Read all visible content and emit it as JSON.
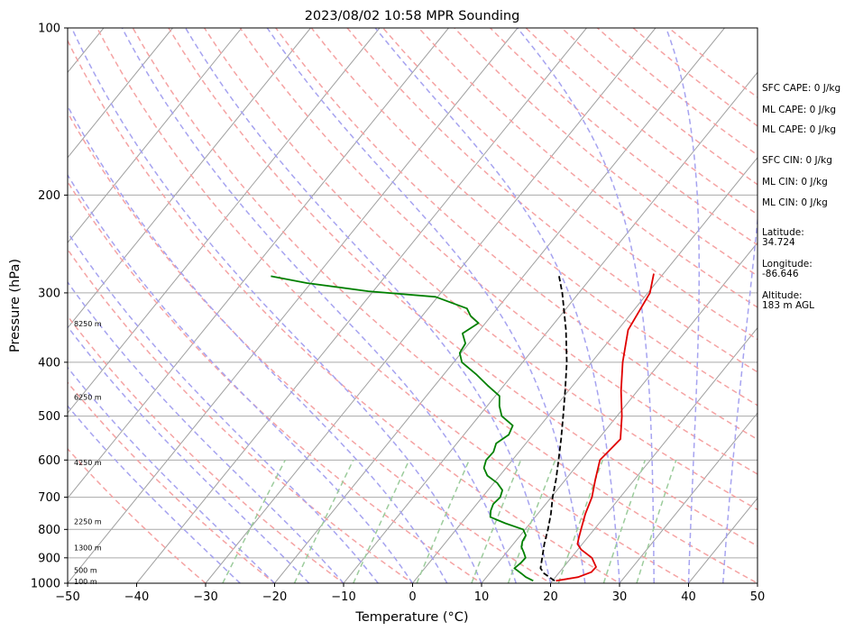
{
  "figure": {
    "title": "2023/08/02 10:58 MPR Sounding",
    "xlabel": "Temperature (°C)",
    "ylabel": "Pressure (hPa)"
  },
  "side_panel": [
    {
      "id": "sfc-cape",
      "text": "SFC CAPE: 0 J/kg"
    },
    {
      "id": "ml-cape-1",
      "text": "ML CAPE: 0 J/kg"
    },
    {
      "id": "ml-cape-2",
      "text": "ML CAPE: 0 J/kg"
    },
    {
      "id": "sfc-cin",
      "text": "SFC CIN: 0 J/kg"
    },
    {
      "id": "ml-cin-1",
      "text": "ML CIN: 0 J/kg"
    },
    {
      "id": "ml-cin-2",
      "text": "ML CIN: 0 J/kg"
    },
    {
      "id": "latitude-label",
      "text": "Latitude:"
    },
    {
      "id": "latitude-value",
      "text": "34.724"
    },
    {
      "id": "longitude-label",
      "text": "Longitude:"
    },
    {
      "id": "longitude-value",
      "text": "-86.646"
    },
    {
      "id": "altitude-label",
      "text": "Altitude:"
    },
    {
      "id": "altitude-value",
      "text": "183 m AGL"
    }
  ],
  "chart_data": {
    "type": "line",
    "title": "2023/08/02 10:58 MPR Sounding",
    "xlabel": "Temperature (°C)",
    "ylabel": "Pressure (hPa)",
    "xlim": [
      -50,
      50
    ],
    "ylim": [
      1000,
      100
    ],
    "y_scale": "log",
    "x_ticks": [
      -50,
      -40,
      -30,
      -20,
      -10,
      0,
      10,
      20,
      30,
      40,
      50
    ],
    "y_ticks": [
      1000,
      900,
      800,
      700,
      600,
      500,
      400,
      300,
      200,
      100
    ],
    "grid": true,
    "colors": {
      "temperature": "#e00000",
      "dewpoint": "#008000",
      "parcel": "#000000",
      "dry_adiabats": "#f5a3a3",
      "moist_adiabats": "#a6a3f0",
      "mixing_ratio": "#9ccc9c",
      "isotherms": "#a0a0a0"
    },
    "height_labels": [
      {
        "text": "100 m",
        "p": 993
      },
      {
        "text": "500 m",
        "p": 947
      },
      {
        "text": "1300 m",
        "p": 863
      },
      {
        "text": "2250 m",
        "p": 774
      },
      {
        "text": "4250 m",
        "p": 606
      },
      {
        "text": "6250 m",
        "p": 462
      },
      {
        "text": "8250 m",
        "p": 341
      }
    ],
    "series": [
      {
        "id": "temperature",
        "points": [
          {
            "p": 990,
            "t": 20.5
          },
          {
            "p": 975,
            "t": 23.3
          },
          {
            "p": 955,
            "t": 24.6
          },
          {
            "p": 935,
            "t": 24.7
          },
          {
            "p": 900,
            "t": 23.0
          },
          {
            "p": 870,
            "t": 20.5
          },
          {
            "p": 850,
            "t": 19.3
          },
          {
            "p": 830,
            "t": 18.8
          },
          {
            "p": 800,
            "t": 18.1
          },
          {
            "p": 750,
            "t": 16.9
          },
          {
            "p": 700,
            "t": 15.9
          },
          {
            "p": 650,
            "t": 14.3
          },
          {
            "p": 600,
            "t": 12.7
          },
          {
            "p": 550,
            "t": 13.2
          },
          {
            "p": 500,
            "t": 10.7
          },
          {
            "p": 450,
            "t": 7.6
          },
          {
            "p": 400,
            "t": 4.5
          },
          {
            "p": 350,
            "t": 1.5
          },
          {
            "p": 300,
            "t": 0.3
          },
          {
            "p": 277,
            "t": -1.4
          }
        ]
      },
      {
        "id": "dewpoint",
        "points": [
          {
            "p": 990,
            "t": 17.2
          },
          {
            "p": 975,
            "t": 15.7
          },
          {
            "p": 960,
            "t": 14.6
          },
          {
            "p": 940,
            "t": 13.0
          },
          {
            "p": 920,
            "t": 13.3
          },
          {
            "p": 900,
            "t": 13.4
          },
          {
            "p": 880,
            "t": 12.5
          },
          {
            "p": 860,
            "t": 11.5
          },
          {
            "p": 840,
            "t": 11.0
          },
          {
            "p": 820,
            "t": 10.8
          },
          {
            "p": 800,
            "t": 9.7
          },
          {
            "p": 780,
            "t": 6.4
          },
          {
            "p": 760,
            "t": 3.5
          },
          {
            "p": 740,
            "t": 2.8
          },
          {
            "p": 720,
            "t": 2.4
          },
          {
            "p": 700,
            "t": 2.6
          },
          {
            "p": 680,
            "t": 2.1
          },
          {
            "p": 660,
            "t": 0.5
          },
          {
            "p": 640,
            "t": -1.8
          },
          {
            "p": 620,
            "t": -3.2
          },
          {
            "p": 600,
            "t": -3.8
          },
          {
            "p": 580,
            "t": -3.7
          },
          {
            "p": 560,
            "t": -4.3
          },
          {
            "p": 540,
            "t": -3.5
          },
          {
            "p": 520,
            "t": -4.0
          },
          {
            "p": 500,
            "t": -6.7
          },
          {
            "p": 480,
            "t": -8.2
          },
          {
            "p": 460,
            "t": -9.4
          },
          {
            "p": 440,
            "t": -12.4
          },
          {
            "p": 420,
            "t": -15.4
          },
          {
            "p": 400,
            "t": -18.8
          },
          {
            "p": 385,
            "t": -20.2
          },
          {
            "p": 370,
            "t": -20.5
          },
          {
            "p": 355,
            "t": -22.1
          },
          {
            "p": 340,
            "t": -21.0
          },
          {
            "p": 330,
            "t": -23.0
          },
          {
            "p": 320,
            "t": -24.4
          },
          {
            "p": 305,
            "t": -30.3
          },
          {
            "p": 298,
            "t": -40.7
          },
          {
            "p": 288,
            "t": -50.6
          },
          {
            "p": 280,
            "t": -56.6
          }
        ]
      },
      {
        "id": "parcel",
        "points": [
          {
            "p": 990,
            "t": 20.3
          },
          {
            "p": 960,
            "t": 17.9
          },
          {
            "p": 940,
            "t": 16.8
          },
          {
            "p": 900,
            "t": 15.8
          },
          {
            "p": 850,
            "t": 14.5
          },
          {
            "p": 800,
            "t": 13.3
          },
          {
            "p": 750,
            "t": 11.9
          },
          {
            "p": 700,
            "t": 10.2
          },
          {
            "p": 650,
            "t": 8.6
          },
          {
            "p": 600,
            "t": 6.7
          },
          {
            "p": 550,
            "t": 4.6
          },
          {
            "p": 500,
            "t": 2.2
          },
          {
            "p": 450,
            "t": -0.5
          },
          {
            "p": 400,
            "t": -3.6
          },
          {
            "p": 350,
            "t": -7.5
          },
          {
            "p": 300,
            "t": -12.4
          },
          {
            "p": 277,
            "t": -15.2
          }
        ]
      }
    ]
  }
}
